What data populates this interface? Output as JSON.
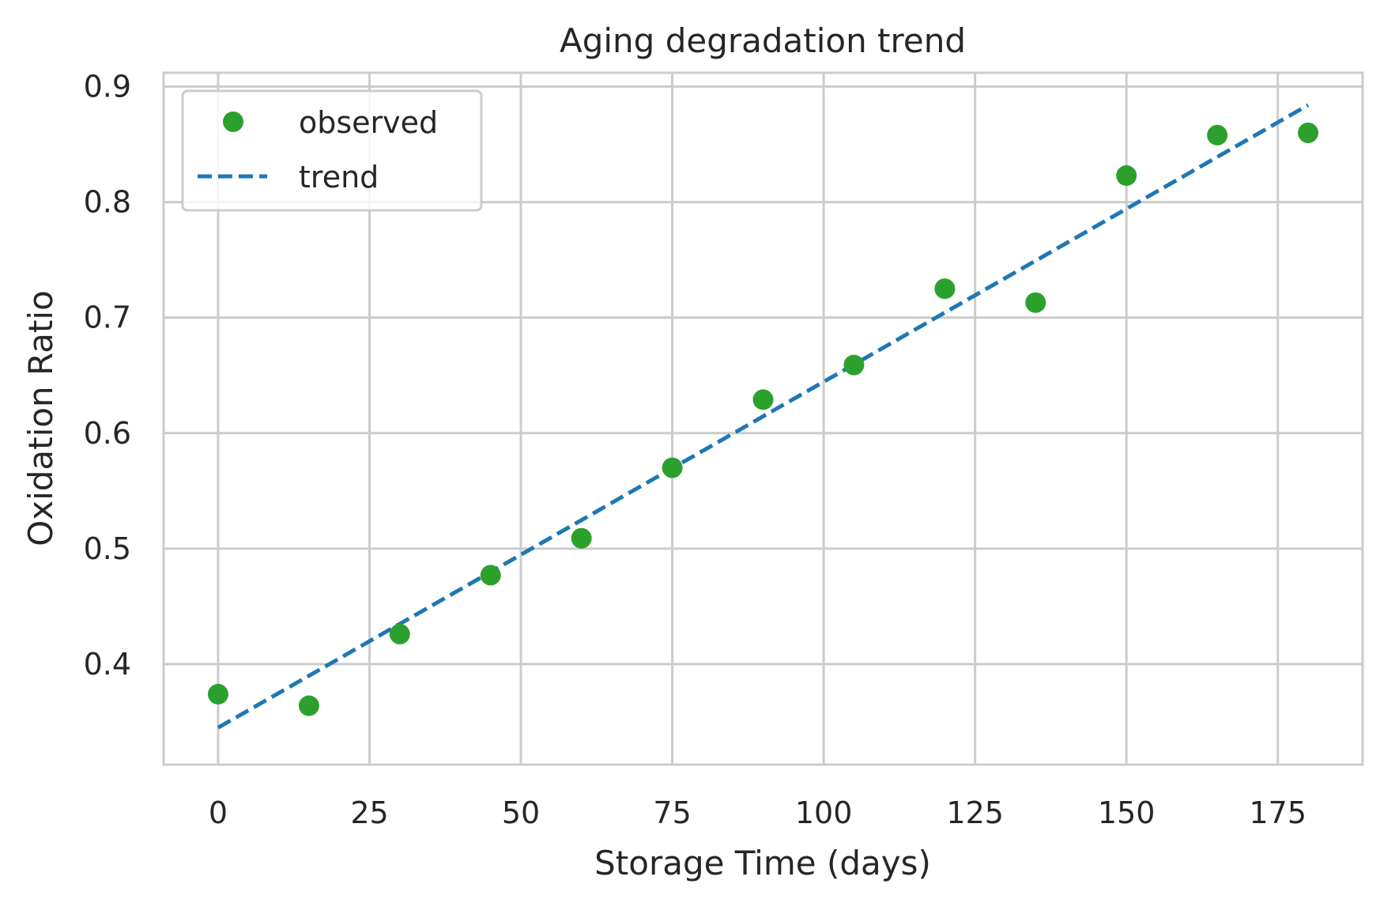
{
  "chart_data": {
    "type": "scatter",
    "title": "Aging degradation trend",
    "xlabel": "Storage Time (days)",
    "ylabel": "Oxidation Ratio",
    "xlim": [
      -9,
      189
    ],
    "ylim": [
      0.313,
      0.912
    ],
    "xticks": [
      0,
      25,
      50,
      75,
      100,
      125,
      150,
      175
    ],
    "yticks": [
      0.4,
      0.5,
      0.6,
      0.7,
      0.8,
      0.9
    ],
    "ytick_labels": [
      "0.4",
      "0.5",
      "0.6",
      "0.7",
      "0.8",
      "0.9"
    ],
    "grid": true,
    "legend_position": "top-left",
    "series": [
      {
        "name": "observed",
        "kind": "markers",
        "color": "#2ca02c",
        "x": [
          0,
          15,
          30,
          45,
          60,
          75,
          90,
          105,
          120,
          135,
          150,
          165,
          180
        ],
        "y": [
          0.374,
          0.364,
          0.426,
          0.477,
          0.509,
          0.57,
          0.629,
          0.659,
          0.725,
          0.713,
          0.823,
          0.858,
          0.86
        ]
      },
      {
        "name": "trend",
        "kind": "dashed-line",
        "color": "#1f77b4",
        "x": [
          0,
          180
        ],
        "y": [
          0.345,
          0.884
        ]
      }
    ]
  }
}
